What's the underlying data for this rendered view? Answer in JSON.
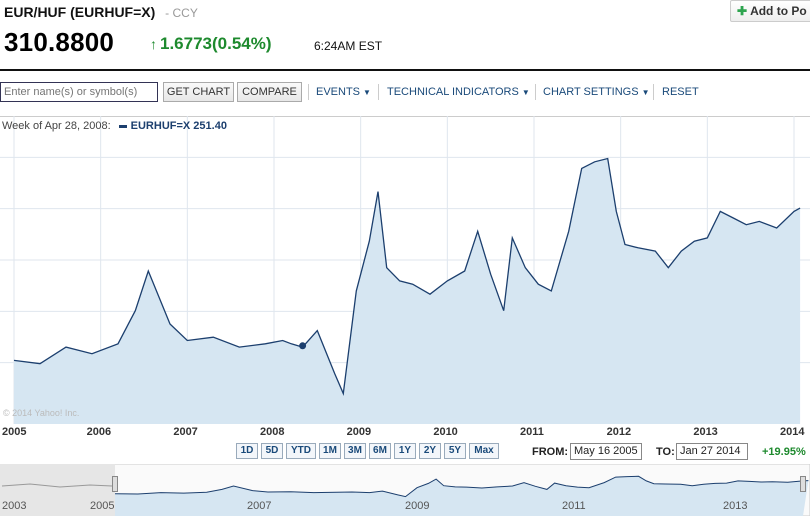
{
  "header": {
    "symbol_title": "EUR/HUF (EURHUF=X)",
    "exchange": "- CCY",
    "price": "310.8800",
    "change_arrow": "↑",
    "change": "1.6773(0.54%)",
    "time": "6:24AM EST",
    "add_button_label": "Add to Po"
  },
  "toolbar": {
    "search_placeholder": "Enter name(s) or symbol(s)",
    "get_chart_label": "GET CHART",
    "compare_label": "COMPARE",
    "events_label": "EVENTS",
    "technical_label": "TECHNICAL INDICATORS",
    "settings_label": "CHART SETTINGS",
    "reset_label": "RESET"
  },
  "legend": {
    "week_label": "Week of Apr 28, 2008:",
    "series_label": "EURHUF=X 251.40"
  },
  "copyright": "© 2014 Yahoo! Inc.",
  "range": {
    "buttons": [
      "1D",
      "5D",
      "YTD",
      "1M",
      "3M",
      "6M",
      "1Y",
      "2Y",
      "5Y",
      "Max"
    ],
    "from_label": "FROM:",
    "from_value": "May 16 2005",
    "to_label": "TO:",
    "to_value": "Jan 27 2014",
    "pct_change": "+19.95%"
  },
  "navigator": {
    "year_labels": [
      "2003",
      "2005",
      "2007",
      "2009",
      "2011",
      "2013"
    ]
  },
  "colors": {
    "line": "#1c3f6e",
    "fill": "#d6e6f2",
    "grid": "#dfe6ee",
    "positive": "#1e8a2e"
  },
  "chart_data": {
    "type": "area",
    "series_name": "EURHUF=X",
    "x_ticks": [
      "2005",
      "2006",
      "2007",
      "2008",
      "2009",
      "2010",
      "2011",
      "2012",
      "2013",
      "2014"
    ],
    "x": [
      2005.0,
      2005.3,
      2005.6,
      2005.9,
      2006.2,
      2006.4,
      2006.55,
      2006.8,
      2007.0,
      2007.3,
      2007.6,
      2007.9,
      2008.1,
      2008.2,
      2008.33,
      2008.5,
      2008.7,
      2008.8,
      2008.95,
      2009.1,
      2009.2,
      2009.3,
      2009.45,
      2009.6,
      2009.8,
      2010.0,
      2010.2,
      2010.35,
      2010.5,
      2010.65,
      2010.75,
      2010.9,
      2011.05,
      2011.2,
      2011.4,
      2011.55,
      2011.7,
      2011.85,
      2011.95,
      2012.05,
      2012.2,
      2012.4,
      2012.55,
      2012.7,
      2012.85,
      2013.0,
      2013.15,
      2013.3,
      2013.45,
      2013.6,
      2013.8,
      2014.0,
      2014.07
    ],
    "y": [
      247,
      246,
      251,
      249,
      252,
      262,
      274,
      258,
      253,
      254,
      251,
      252,
      253,
      252,
      251,
      256,
      243,
      237,
      268,
      283,
      298,
      275,
      271,
      270,
      267,
      271,
      274,
      286,
      273,
      262,
      284,
      275,
      270,
      268,
      286,
      305,
      307,
      308,
      292,
      282,
      281,
      280,
      275,
      280,
      283,
      284,
      292,
      290,
      288,
      289,
      287,
      292,
      293
    ],
    "highlight_point": {
      "x": 2008.33,
      "y": 251.4
    },
    "ylim": [
      232,
      316
    ]
  }
}
